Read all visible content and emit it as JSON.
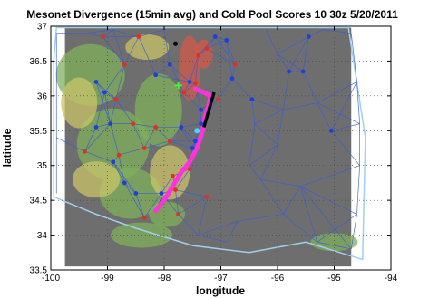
{
  "chart_data": {
    "type": "scatter",
    "title": "Mesonet Divergence (15min avg) and Cold Pool Scores  10 30z 5/20/2011",
    "xlabel": "longitude",
    "ylabel": "latitude",
    "xlim": [
      -100,
      -94
    ],
    "ylim": [
      33.5,
      37
    ],
    "xticks": [
      -100,
      -99,
      -98,
      -97,
      -96,
      -95,
      -94
    ],
    "yticks": [
      33.5,
      34,
      34.5,
      35,
      35.5,
      36,
      36.5,
      37
    ],
    "xtick_labels": [
      "-100",
      "-99",
      "-98",
      "-97",
      "-96",
      "-95",
      "-94"
    ],
    "ytick_labels": [
      "33.5",
      "34",
      "34.5",
      "35",
      "35.5",
      "36",
      "36.5",
      "37"
    ],
    "grid": true,
    "colors": {
      "mesh": "#3a5bd8",
      "state_border": "#9fd0f0",
      "red_station": "#e0301e",
      "blue_station": "#1f3fd6",
      "cold_pool_track": "#ff33dd",
      "black_segment": "#000000",
      "green_marker": "#33ff33",
      "cyan_marker": "#33e0ff",
      "radar_green": "#7fb05a",
      "radar_yellow": "#c9c46a",
      "radar_red": "#d25a4a",
      "background_gray": "#6e6e6e"
    },
    "series": [
      {
        "values": [
          [
            -99.08,
            36.85
          ],
          [
            -98.7,
            36.45
          ],
          [
            -98.45,
            36.85
          ],
          [
            -97.4,
            36.58
          ],
          [
            -97.45,
            36.18
          ],
          [
            -97.05,
            35.95
          ],
          [
            -96.75,
            36.45
          ],
          [
            -98.85,
            35.95
          ],
          [
            -98.55,
            35.6
          ],
          [
            -98.8,
            35.15
          ],
          [
            -98.35,
            35.25
          ],
          [
            -98.15,
            35.55
          ],
          [
            -97.9,
            35.35
          ],
          [
            -97.55,
            34.95
          ],
          [
            -97.85,
            34.85
          ],
          [
            -97.25,
            34.55
          ],
          [
            -97.8,
            34.65
          ],
          [
            -99.4,
            35.2
          ],
          [
            -97.75,
            34.3
          ],
          [
            -98.35,
            34.25
          ],
          [
            -97.65,
            36.05
          ],
          [
            -97.25,
            36.68
          ]
        ]
      },
      {
        "values": [
          [
            -99.2,
            36.2
          ],
          [
            -98.95,
            35.6
          ],
          [
            -98.15,
            36.3
          ],
          [
            -97.55,
            36.2
          ],
          [
            -97.35,
            35.6
          ],
          [
            -96.8,
            36.25
          ],
          [
            -95.8,
            36.35
          ],
          [
            -95.55,
            36.35
          ],
          [
            -95.45,
            36.85
          ],
          [
            -95.05,
            35.5
          ],
          [
            -96.45,
            35.95
          ],
          [
            -98.5,
            34.6
          ],
          [
            -98.05,
            34.6
          ],
          [
            -97.5,
            35.25
          ],
          [
            -97.35,
            35.8
          ],
          [
            -97.9,
            36.45
          ],
          [
            -99.2,
            35.55
          ],
          [
            -98.9,
            35.05
          ],
          [
            -97.1,
            36.85
          ],
          [
            -99.05,
            36.05
          ],
          [
            -97.45,
            35.35
          ],
          [
            -98.7,
            34.75
          ],
          [
            -96.9,
            36.8
          ],
          [
            -97.7,
            35.55
          ]
        ]
      }
    ],
    "cold_pool_track": [
      [
        -98.15,
        34.35
      ],
      [
        -98.0,
        34.5
      ],
      [
        -97.85,
        34.7
      ],
      [
        -97.7,
        34.9
      ],
      [
        -97.55,
        35.05
      ],
      [
        -97.42,
        35.25
      ],
      [
        -97.32,
        35.5
      ],
      [
        -97.28,
        35.7
      ],
      [
        -97.22,
        35.85
      ],
      [
        -97.18,
        36.0
      ],
      [
        -97.3,
        36.05
      ],
      [
        -97.45,
        36.1
      ]
    ],
    "black_segment": [
      [
        -97.3,
        35.55
      ],
      [
        -97.12,
        36.05
      ]
    ],
    "green_marker": [
      -97.75,
      36.15
    ],
    "cyan_marker": [
      -97.42,
      35.5
    ],
    "black_marker": [
      -97.8,
      36.75
    ]
  }
}
